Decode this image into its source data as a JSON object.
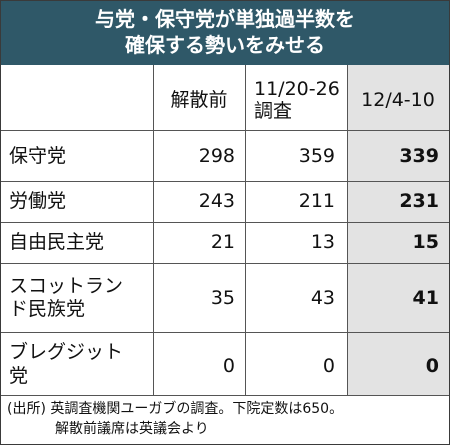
{
  "title": {
    "line1": "与党・保守党が単独過半数を",
    "line2": "確保する勢いをみせる"
  },
  "columns": {
    "col1": "解散前",
    "col2_line1": "11/20-26",
    "col2_line2": "調査",
    "col3": "12/4-10"
  },
  "rows": [
    {
      "party_line1": "保守党",
      "party_line2": "",
      "before": "298",
      "survey1": "359",
      "survey2": "339"
    },
    {
      "party_line1": "労働党",
      "party_line2": "",
      "before": "243",
      "survey1": "211",
      "survey2": "231"
    },
    {
      "party_line1": "自由民主党",
      "party_line2": "",
      "before": "21",
      "survey1": "13",
      "survey2": "15"
    },
    {
      "party_line1": "スコットラン",
      "party_line2": "ド民族党",
      "before": "35",
      "survey1": "43",
      "survey2": "41"
    },
    {
      "party_line1": "ブレグジット",
      "party_line2": "党",
      "before": "0",
      "survey1": "0",
      "survey2": "0"
    }
  ],
  "note": {
    "line1": "(出所) 英調査機関ユーガブの調査。下院定数は650。",
    "line2": "解散前議席は英議会より"
  },
  "colors": {
    "title_bg": "#2f5868",
    "highlight_bg": "#e3e3e3"
  }
}
